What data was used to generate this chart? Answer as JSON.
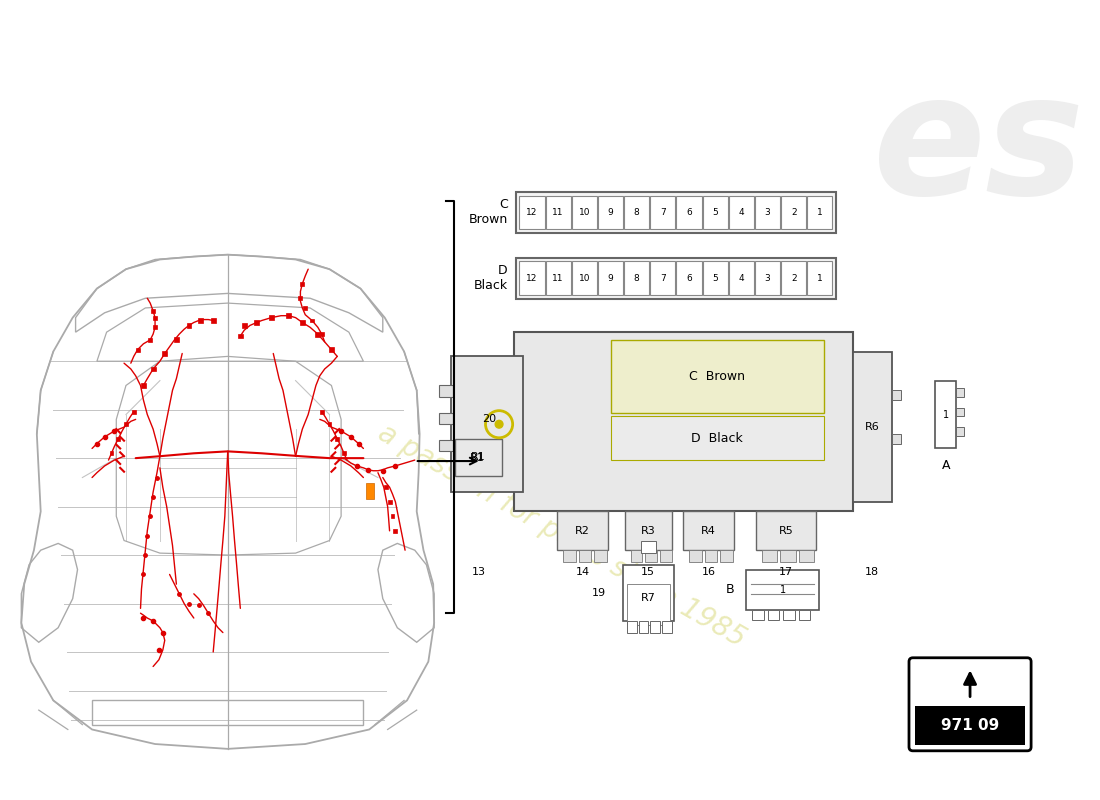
{
  "bg_color": "#ffffff",
  "car_color": "#aaaaaa",
  "wiring_color": "#dd0000",
  "text_color": "#000000",
  "watermark_color": "#e8e8b0",
  "watermark_text": "a passion for parts since 1985",
  "page_number": "971 09",
  "fuse_row_C_label": "C\nBrown",
  "fuse_row_D_label": "D\nBlack",
  "fuse_slots": [
    12,
    11,
    10,
    9,
    8,
    7,
    6,
    5,
    4,
    3,
    2,
    1
  ],
  "relay_labels": [
    "R1",
    "R2",
    "R3",
    "R4",
    "R5",
    "R6"
  ],
  "relay_numbers": [
    13,
    14,
    15,
    16,
    17,
    18
  ],
  "extra_relay_label": "R7",
  "extra_relay_number": 19,
  "number_20": 20,
  "connector_A": "A",
  "connector_B": "B",
  "internal_C": "C  Brown",
  "internal_D": "D  Black"
}
